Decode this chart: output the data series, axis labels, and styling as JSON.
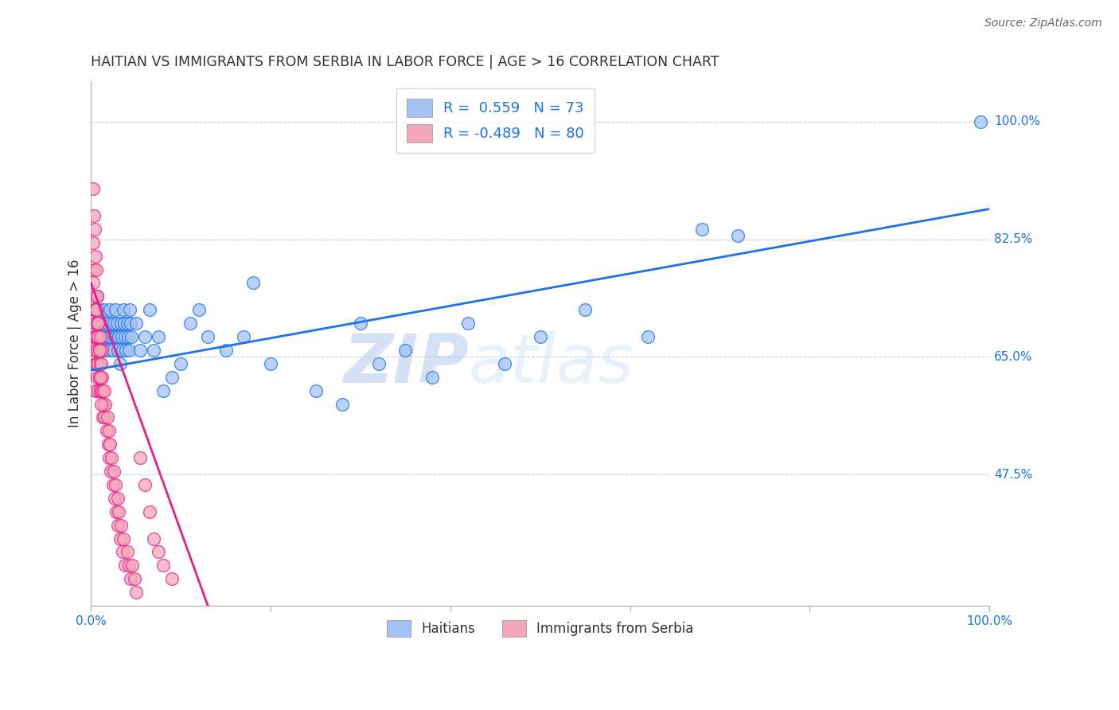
{
  "title": "HAITIAN VS IMMIGRANTS FROM SERBIA IN LABOR FORCE | AGE > 16 CORRELATION CHART",
  "source": "Source: ZipAtlas.com",
  "ylabel": "In Labor Force | Age > 16",
  "xlim": [
    0.0,
    1.0
  ],
  "ylim": [
    0.28,
    1.06
  ],
  "ytick_positions": [
    0.475,
    0.65,
    0.825,
    1.0
  ],
  "ytick_labels": [
    "47.5%",
    "65.0%",
    "82.5%",
    "100.0%"
  ],
  "blue_color": "#a4c2f4",
  "pink_color": "#f4a7b9",
  "blue_line_color": "#1a73e8",
  "pink_line_color": "#e91e8c",
  "R_blue": 0.559,
  "N_blue": 73,
  "R_pink": -0.489,
  "N_pink": 80,
  "legend_label_blue": "Haitians",
  "legend_label_pink": "Immigrants from Serbia",
  "watermark_zip": "ZIP",
  "watermark_atlas": "atlas",
  "background_color": "#ffffff",
  "blue_scatter_x": [
    0.003,
    0.004,
    0.005,
    0.006,
    0.007,
    0.008,
    0.009,
    0.01,
    0.011,
    0.012,
    0.013,
    0.014,
    0.015,
    0.016,
    0.017,
    0.018,
    0.019,
    0.02,
    0.021,
    0.022,
    0.023,
    0.024,
    0.025,
    0.026,
    0.027,
    0.028,
    0.029,
    0.03,
    0.031,
    0.032,
    0.033,
    0.034,
    0.035,
    0.036,
    0.037,
    0.038,
    0.039,
    0.04,
    0.041,
    0.042,
    0.043,
    0.044,
    0.045,
    0.05,
    0.055,
    0.06,
    0.065,
    0.07,
    0.075,
    0.08,
    0.09,
    0.1,
    0.11,
    0.12,
    0.13,
    0.15,
    0.17,
    0.2,
    0.25,
    0.28,
    0.32,
    0.35,
    0.38,
    0.42,
    0.46,
    0.5,
    0.55,
    0.62,
    0.68,
    0.72,
    0.99,
    0.3,
    0.18
  ],
  "blue_scatter_y": [
    0.72,
    0.68,
    0.7,
    0.66,
    0.74,
    0.68,
    0.7,
    0.72,
    0.68,
    0.66,
    0.7,
    0.68,
    0.72,
    0.66,
    0.68,
    0.7,
    0.66,
    0.68,
    0.72,
    0.7,
    0.68,
    0.66,
    0.7,
    0.68,
    0.72,
    0.68,
    0.7,
    0.66,
    0.68,
    0.64,
    0.7,
    0.68,
    0.66,
    0.72,
    0.7,
    0.68,
    0.66,
    0.7,
    0.68,
    0.66,
    0.72,
    0.7,
    0.68,
    0.7,
    0.66,
    0.68,
    0.72,
    0.66,
    0.68,
    0.6,
    0.62,
    0.64,
    0.7,
    0.72,
    0.68,
    0.66,
    0.68,
    0.64,
    0.6,
    0.58,
    0.64,
    0.66,
    0.62,
    0.7,
    0.64,
    0.68,
    0.72,
    0.68,
    0.84,
    0.83,
    1.0,
    0.7,
    0.76
  ],
  "pink_scatter_x": [
    0.002,
    0.002,
    0.003,
    0.003,
    0.003,
    0.004,
    0.004,
    0.004,
    0.005,
    0.005,
    0.005,
    0.005,
    0.006,
    0.006,
    0.006,
    0.007,
    0.007,
    0.007,
    0.008,
    0.008,
    0.008,
    0.009,
    0.009,
    0.01,
    0.01,
    0.01,
    0.011,
    0.011,
    0.012,
    0.012,
    0.013,
    0.013,
    0.014,
    0.015,
    0.015,
    0.016,
    0.017,
    0.018,
    0.019,
    0.02,
    0.02,
    0.021,
    0.022,
    0.023,
    0.024,
    0.025,
    0.026,
    0.027,
    0.028,
    0.03,
    0.03,
    0.031,
    0.032,
    0.033,
    0.035,
    0.036,
    0.038,
    0.04,
    0.042,
    0.044,
    0.046,
    0.048,
    0.05,
    0.055,
    0.06,
    0.065,
    0.07,
    0.075,
    0.08,
    0.09,
    0.002,
    0.003,
    0.004,
    0.005,
    0.006,
    0.007,
    0.008,
    0.009,
    0.01,
    0.011
  ],
  "pink_scatter_y": [
    0.82,
    0.76,
    0.78,
    0.72,
    0.68,
    0.74,
    0.7,
    0.66,
    0.72,
    0.68,
    0.64,
    0.6,
    0.72,
    0.68,
    0.64,
    0.7,
    0.66,
    0.62,
    0.68,
    0.64,
    0.6,
    0.66,
    0.62,
    0.68,
    0.64,
    0.6,
    0.64,
    0.6,
    0.66,
    0.62,
    0.6,
    0.56,
    0.58,
    0.6,
    0.56,
    0.58,
    0.54,
    0.56,
    0.52,
    0.54,
    0.5,
    0.52,
    0.48,
    0.5,
    0.46,
    0.48,
    0.44,
    0.46,
    0.42,
    0.44,
    0.4,
    0.42,
    0.38,
    0.4,
    0.36,
    0.38,
    0.34,
    0.36,
    0.34,
    0.32,
    0.34,
    0.32,
    0.3,
    0.5,
    0.46,
    0.42,
    0.38,
    0.36,
    0.34,
    0.32,
    0.9,
    0.86,
    0.84,
    0.8,
    0.78,
    0.74,
    0.7,
    0.66,
    0.62,
    0.58
  ]
}
